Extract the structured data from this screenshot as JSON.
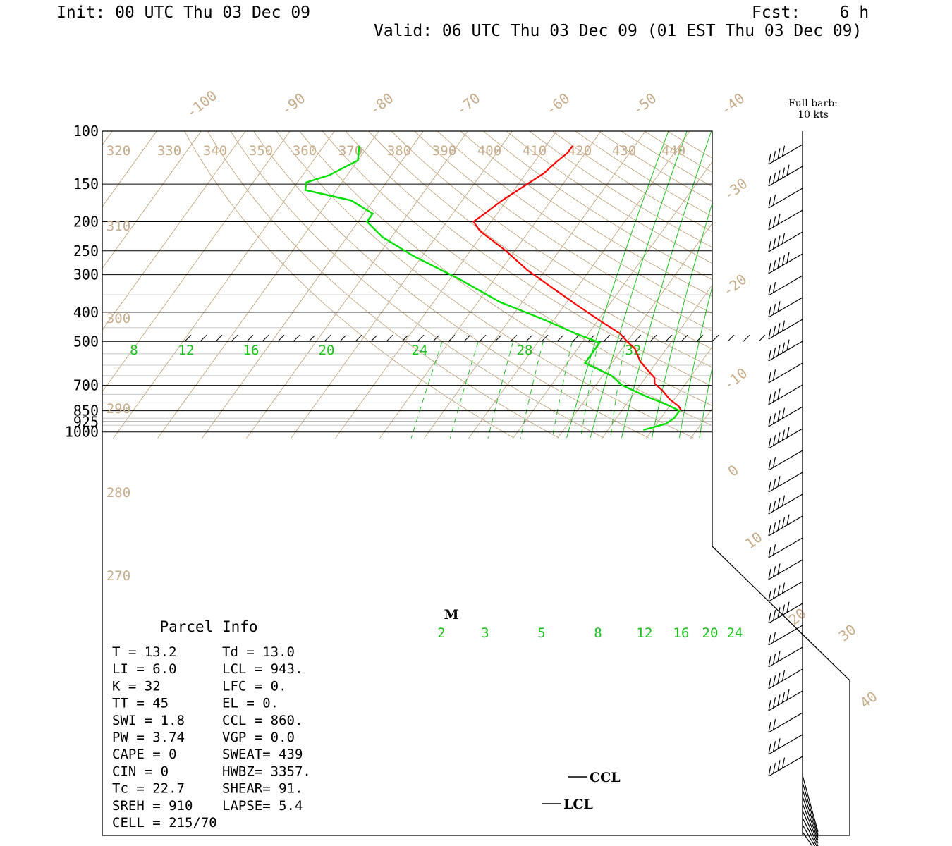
{
  "header": {
    "init": "Init: 00 UTC Thu 03 Dec 09",
    "fcst": "Fcst:    6 h",
    "valid": "Valid: 06 UTC Thu 03 Dec 09 (01 EST Thu 03 Dec 09)"
  },
  "barb_legend": {
    "line1": "Full barb:",
    "line2": "10 kts"
  },
  "colors": {
    "temperature": "#ff0000",
    "dewpoint": "#00e000",
    "isotherm": "#c8ae8c",
    "mixing_ratio": "#1fbf1f",
    "frame": "#000000"
  },
  "chart_data": {
    "type": "line",
    "title": "",
    "xlabel": "",
    "ylabel": "",
    "y_scale": "log-pressure",
    "pressure_ticks": [
      "100",
      "150",
      "200",
      "250",
      "300",
      "400",
      "500",
      "700",
      "850",
      "925",
      "1000"
    ],
    "skewed_isotherm_labels": [
      "-100",
      "-90",
      "-80",
      "-70",
      "-60",
      "-50",
      "-40",
      "-30",
      "-20",
      "-10",
      "0",
      "10",
      "20",
      "30",
      "40"
    ],
    "theta_labels_top": [
      "320",
      "330",
      "340",
      "350",
      "360",
      "370",
      "380",
      "390",
      "400",
      "410",
      "420",
      "430",
      "440"
    ],
    "theta_labels_left": [
      "310",
      "300",
      "290",
      "280",
      "270"
    ],
    "mixing_ratio_labels_upper": [
      "8",
      "12",
      "16",
      "20",
      "24",
      "28",
      "32"
    ],
    "mixing_ratio_labels_lower": [
      "2",
      "3",
      "5",
      "8",
      "12",
      "16",
      "20",
      "24"
    ],
    "series": [
      {
        "name": "",
        "color": "#ff0000",
        "pressure": [
          112,
          118,
          126,
          138,
          150,
          170,
          190,
          200,
          215,
          250,
          290,
          340,
          380,
          430,
          470,
          500,
          530,
          580,
          620,
          660,
          690,
          730,
          780,
          820,
          845
        ],
        "temperature_c": [
          -54,
          -54,
          -55,
          -56,
          -58,
          -61,
          -63,
          -64,
          -61,
          -52,
          -44,
          -34,
          -27,
          -19,
          -13,
          -10,
          -7,
          -4,
          -1,
          2,
          3,
          6,
          9,
          12,
          13.2
        ]
      },
      {
        "name": "",
        "color": "#00e000",
        "pressure": [
          112,
          125,
          140,
          148,
          157,
          170,
          188,
          200,
          225,
          260,
          310,
          370,
          420,
          470,
          505,
          590,
          650,
          700,
          760,
          810,
          850,
          900,
          940,
          985
        ],
        "dewpoint_c": [
          -102,
          -100,
          -104,
          -108,
          -107,
          -95,
          -88,
          -88,
          -82,
          -72,
          -58,
          -45,
          -33,
          -23,
          -16,
          -16,
          -8,
          -4,
          3,
          9,
          13,
          13,
          12,
          8
        ]
      }
    ],
    "annotations": [
      "M",
      "CCL",
      "LCL"
    ]
  },
  "parcel_info": {
    "title": "Parcel Info",
    "rows": [
      {
        "left": "T   =     13.2",
        "right": "Td  =  13.0"
      },
      {
        "left": "LI  =      6.0",
        "right": "LCL  =  943."
      },
      {
        "left": "K   =       32",
        "right": "LFC =    0."
      },
      {
        "left": "TT  =       45",
        "right": "EL  =    0."
      },
      {
        "left": "SWI =      1.8",
        "right": "CCL  =  860."
      },
      {
        "left": "PW  =     3.74",
        "right": "VGP =   0.0"
      },
      {
        "left": "CAPE =       0",
        "right": "SWEAT=  439"
      },
      {
        "left": "CIN  =       0",
        "right": "HWBZ= 3357."
      },
      {
        "left": "Tc  =     22.7",
        "right": "SHEAR=  91."
      },
      {
        "left": "SREH =     910",
        "right": "LAPSE=  5.4"
      },
      {
        "left": "CELL = 215/70",
        "right": ""
      }
    ]
  }
}
